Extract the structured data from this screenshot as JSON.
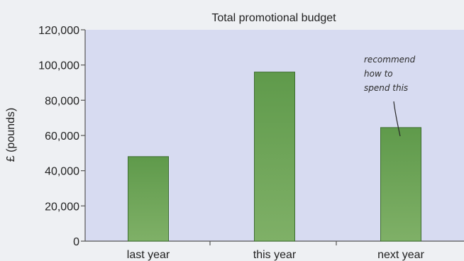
{
  "colors": {
    "page_background": "#eef0f3",
    "plot_background": "#d7dbf1",
    "bar_fill_top": "#5f9a4b",
    "bar_fill_bottom": "#7fb067",
    "bar_stroke": "#3e6e32",
    "axis": "#555555"
  },
  "chart_data": {
    "type": "bar",
    "title": "Total promotional budget",
    "xlabel": "",
    "ylabel": "£ (pounds)",
    "categories": [
      "last year",
      "this year",
      "next year"
    ],
    "values": [
      48000,
      96000,
      64500
    ],
    "ylim": [
      0,
      120000
    ],
    "yticks": [
      0,
      20000,
      40000,
      60000,
      80000,
      100000,
      120000
    ],
    "ytick_labels": [
      "0",
      "20,000",
      "40,000",
      "60,000",
      "80,000",
      "100,000",
      "120,000"
    ],
    "grid": false,
    "legend": "none",
    "annotation": {
      "lines": [
        "recommend",
        "how to",
        "spend this"
      ],
      "points_to_category": "next year"
    }
  }
}
